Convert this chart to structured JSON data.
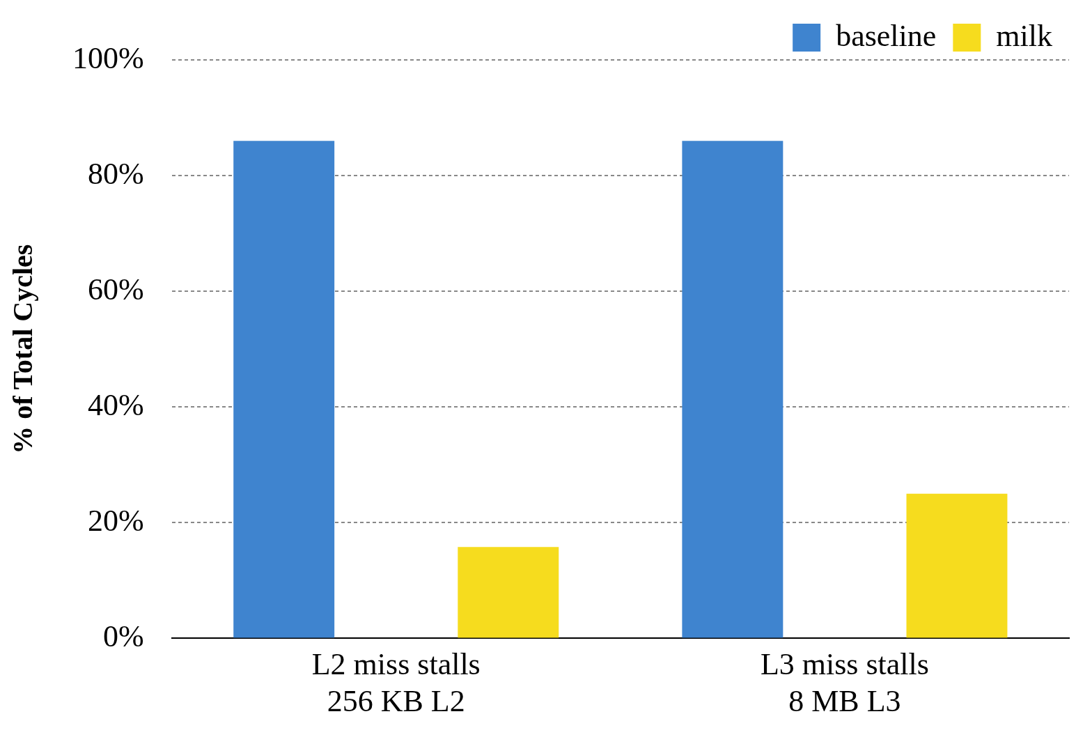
{
  "chart_data": {
    "type": "bar",
    "ylabel": "% of Total Cycles",
    "categories": [
      "L2 miss stalls\n256 KB L2",
      "L3 miss stalls\n8 MB L3"
    ],
    "series": [
      {
        "name": "baseline",
        "color": "#3f84cf",
        "values": [
          86,
          86
        ]
      },
      {
        "name": "milk",
        "color": "#f6dc1e",
        "values": [
          15.8,
          25
        ]
      }
    ],
    "ylim": [
      0,
      100
    ],
    "yticks": [
      {
        "value": 0,
        "label": "0%"
      },
      {
        "value": 20,
        "label": "20%"
      },
      {
        "value": 40,
        "label": "40%"
      },
      {
        "value": 60,
        "label": "60%"
      },
      {
        "value": 80,
        "label": "80%"
      },
      {
        "value": 100,
        "label": "100%"
      }
    ],
    "grid": "y",
    "legend": "top"
  }
}
